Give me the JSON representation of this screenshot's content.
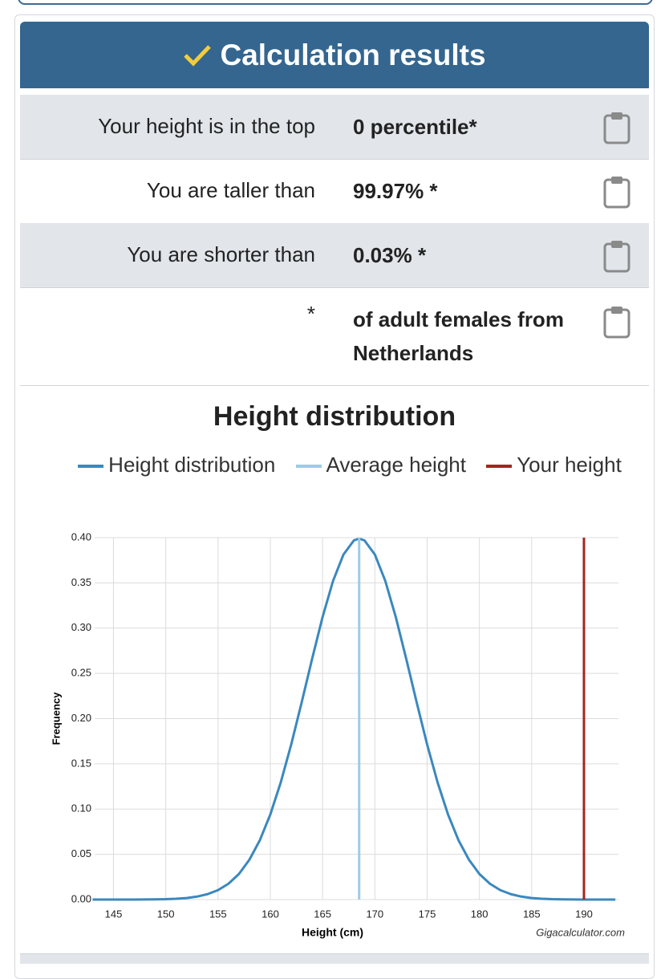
{
  "header": {
    "title": "Calculation results"
  },
  "results": {
    "rows": [
      {
        "label": "Your height is in the top",
        "value": "0 percentile*"
      },
      {
        "label": "You are taller than",
        "value": "99.97% *"
      },
      {
        "label": "You are shorter than",
        "value": "0.03% *"
      },
      {
        "label": "*",
        "value": "of adult females from Netherlands"
      }
    ]
  },
  "chart_data": {
    "type": "line",
    "title": "Height distribution",
    "x_label": "Height (cm)",
    "y_label": "Frequency",
    "credit": "Gigacalculator.com",
    "series": [
      {
        "name": "Height distribution",
        "color": "#3b88be",
        "x": [
          143,
          144,
          145,
          146,
          147,
          148,
          149,
          150,
          151,
          152,
          153,
          154,
          155,
          156,
          157,
          158,
          159,
          160,
          161,
          162,
          163,
          164,
          165,
          166,
          167,
          168,
          168.5,
          169,
          170,
          171,
          172,
          173,
          174,
          175,
          176,
          177,
          178,
          179,
          180,
          181,
          182,
          183,
          184,
          185,
          186,
          187,
          188,
          189,
          190,
          191,
          192,
          193
        ],
        "values": [
          0,
          0,
          0,
          0,
          0,
          0.0001,
          0.0002,
          0.0004,
          0.0009,
          0.0017,
          0.0033,
          0.006,
          0.0104,
          0.0175,
          0.0283,
          0.044,
          0.0656,
          0.094,
          0.1295,
          0.1714,
          0.2179,
          0.2661,
          0.3123,
          0.3521,
          0.3814,
          0.397,
          0.3989,
          0.397,
          0.3814,
          0.3521,
          0.3123,
          0.2661,
          0.2179,
          0.1714,
          0.1295,
          0.094,
          0.0656,
          0.044,
          0.0283,
          0.0175,
          0.0104,
          0.006,
          0.0033,
          0.0017,
          0.0009,
          0.0004,
          0.0002,
          0.0001,
          0,
          0,
          0,
          0
        ]
      }
    ],
    "markers": [
      {
        "name": "Average height",
        "color": "#9ccbe6",
        "x": 168.5
      },
      {
        "name": "Your height",
        "color": "#a3261e",
        "x": 190
      }
    ],
    "xlim": [
      143.2,
      193.3
    ],
    "ylim": [
      0,
      0.4
    ],
    "xticks": [
      145,
      150,
      155,
      160,
      165,
      170,
      175,
      180,
      185,
      190
    ],
    "yticks": [
      {
        "value": 0,
        "label": "0.00"
      },
      {
        "value": 0.05,
        "label": "0.05"
      },
      {
        "value": 0.1,
        "label": "0.10"
      },
      {
        "value": 0.15,
        "label": "0.15"
      },
      {
        "value": 0.2,
        "label": "0.20"
      },
      {
        "value": 0.25,
        "label": "0.25"
      },
      {
        "value": 0.3,
        "label": "0.30"
      },
      {
        "value": 0.35,
        "label": "0.35"
      },
      {
        "value": 0.4,
        "label": "0.40"
      }
    ],
    "grid": true
  }
}
